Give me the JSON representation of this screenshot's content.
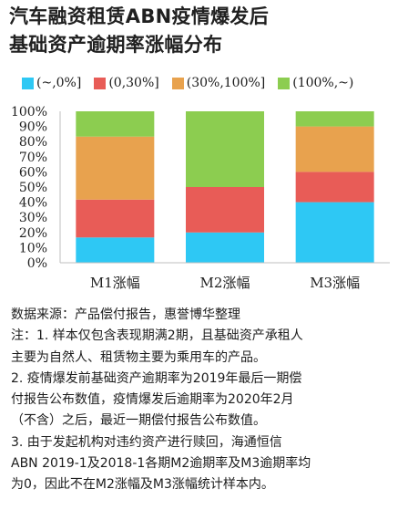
{
  "title": {
    "line1": "汽车融资租赁ABN疫情爆发后",
    "line2": "基础资产逾期率涨幅分布"
  },
  "legend": [
    {
      "label": "(~,0%]",
      "color": "#2ec8f4"
    },
    {
      "label": "(0,30%]",
      "color": "#e85c57"
    },
    {
      "label": "(30%,100%]",
      "color": "#e8a24e"
    },
    {
      "label": "(100%,~)",
      "color": "#8ccd50"
    }
  ],
  "chart_data": {
    "type": "bar",
    "stacked": true,
    "categories": [
      "M1涨幅",
      "M2涨幅",
      "M3涨幅"
    ],
    "series": [
      {
        "name": "(~,0%]",
        "values": [
          16.7,
          20,
          40
        ],
        "color": "#2ec8f4"
      },
      {
        "name": "(0,30%]",
        "values": [
          25,
          30,
          20
        ],
        "color": "#e85c57"
      },
      {
        "name": "(30%,100%]",
        "values": [
          41.6,
          0,
          30
        ],
        "color": "#e8a24e"
      },
      {
        "name": "(100%,~)",
        "values": [
          16.7,
          50,
          10
        ],
        "color": "#8ccd50"
      }
    ],
    "ylim": [
      0,
      100
    ],
    "yticks": [
      "0%",
      "10%",
      "20%",
      "30%",
      "40%",
      "50%",
      "60%",
      "70%",
      "80%",
      "90%",
      "100%"
    ],
    "grid": false,
    "legend_position": "top"
  },
  "notes": {
    "line1": "数据来源：产品偿付报告，惠誉博华整理",
    "line2": "注：1. 样本仅包含表现期满2期，且基础资产承租人",
    "line3": "主要为自然人、租赁物主要为乘用车的产品。",
    "line4": "2. 疫情爆发前基础资产逾期率为2019年最后一期偿",
    "line5": "付报告公布数值，疫情爆发后逾期率为2020年2月",
    "line6": "（不含）之后，最近一期偿付报告公布数值。",
    "line7": "3. 由于发起机构对违约资产进行赎回，海通恒信",
    "line8": "ABN 2019-1及2018-1各期M2逾期率及M3逾期率均",
    "line9": "为0，因此不在M2涨幅及M3涨幅统计样本内。"
  }
}
